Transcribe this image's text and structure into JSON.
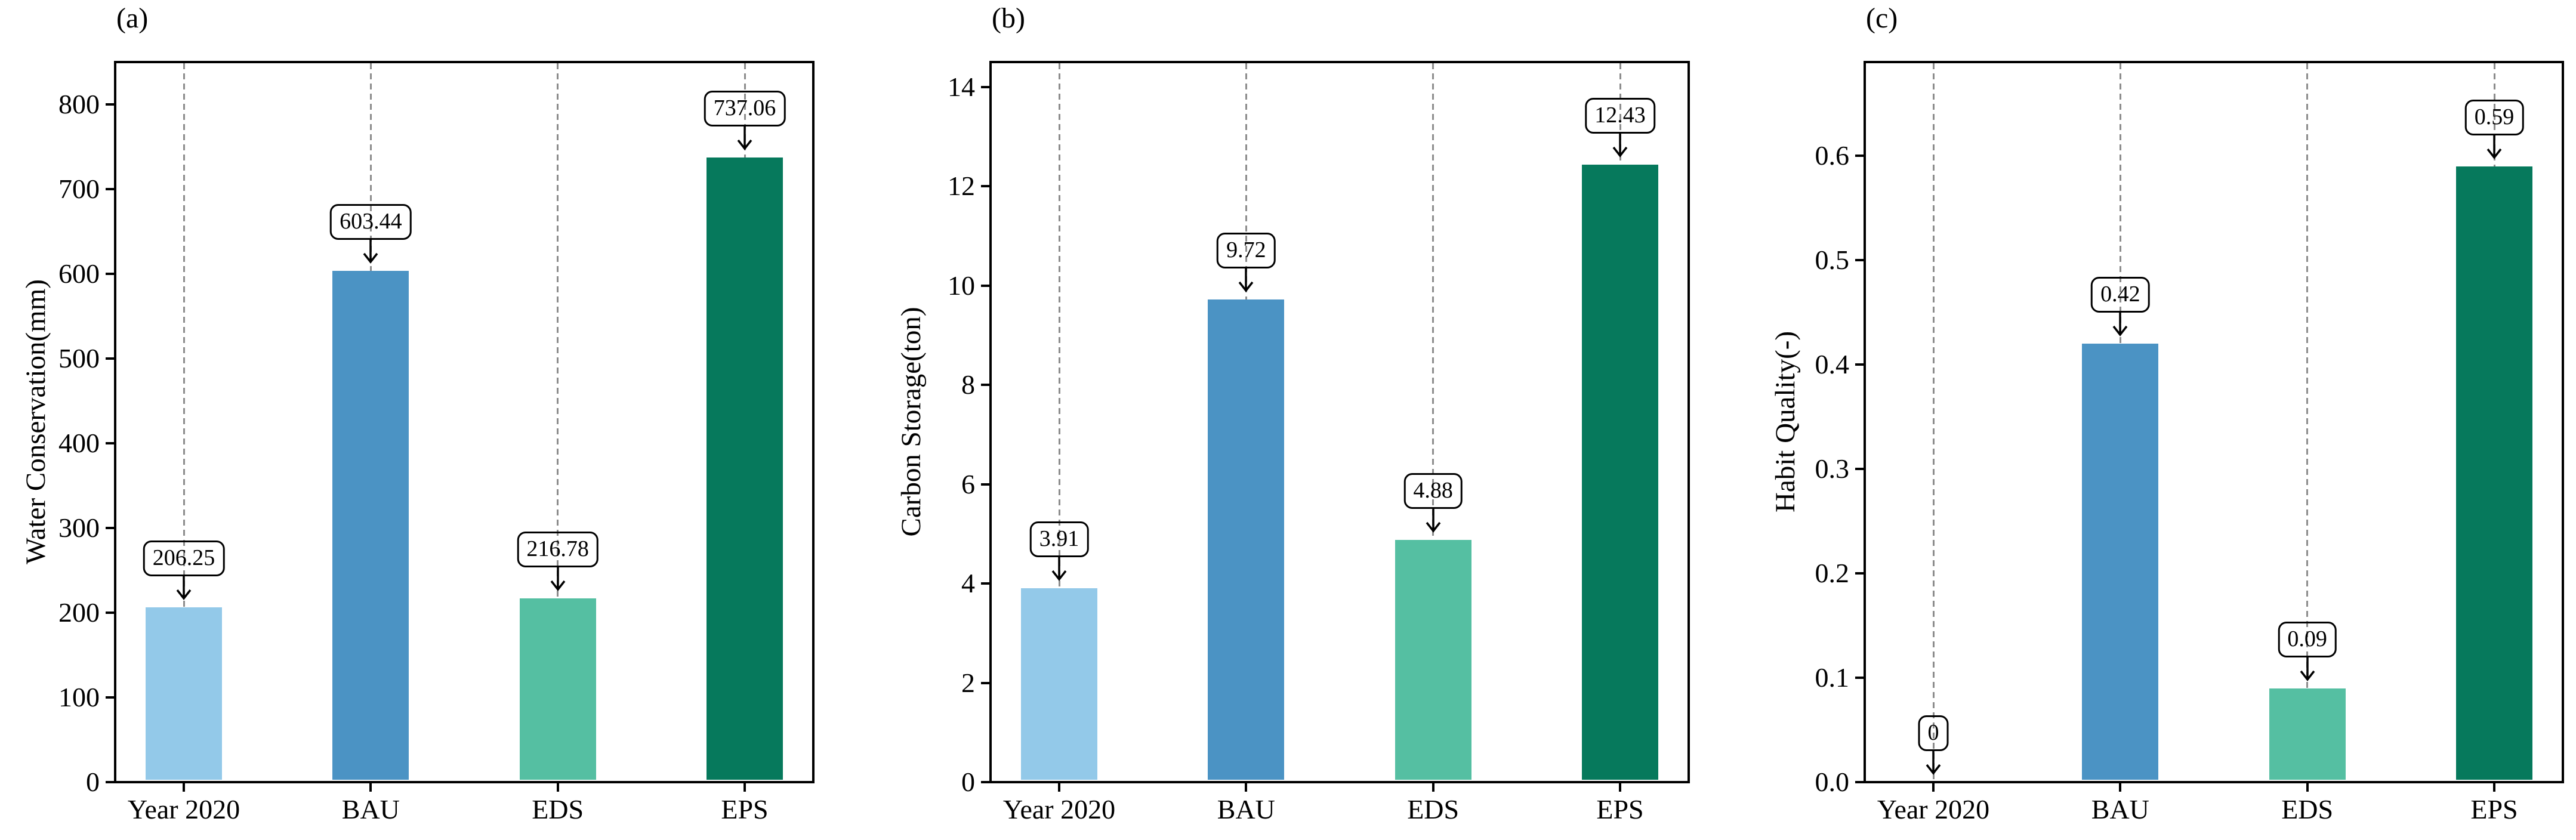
{
  "figure": {
    "background": "#ffffff",
    "gridline_color": "#8c8c8c",
    "text_color": "#000000",
    "arrow_color": "#000000"
  },
  "chart_data": [
    {
      "type": "bar",
      "panel_label": "(a)",
      "ylabel": "Water Conservation(mm)",
      "xlabel": "",
      "categories": [
        "Year 2020",
        "BAU",
        "EDS",
        "EPS"
      ],
      "values": [
        206.25,
        603.44,
        216.78,
        737.06
      ],
      "bar_labels": [
        "206.25",
        "603.44",
        "216.78",
        "737.06"
      ],
      "yticks": [
        "0",
        "100",
        "200",
        "300",
        "400",
        "500",
        "600",
        "700",
        "800"
      ],
      "ylim": [
        0,
        850
      ],
      "grid": "vertical-dashed",
      "bar_colors": [
        "#93c9e9",
        "#4b93c4",
        "#55bfa2",
        "#06795c"
      ]
    },
    {
      "type": "bar",
      "panel_label": "(b)",
      "ylabel": "Carbon Storage(ton)",
      "xlabel": "",
      "categories": [
        "Year 2020",
        "BAU",
        "EDS",
        "EPS"
      ],
      "values": [
        3.91,
        9.72,
        4.88,
        12.43
      ],
      "bar_labels": [
        "3.91",
        "9.72",
        "4.88",
        "12.43"
      ],
      "yticks": [
        "0",
        "2",
        "4",
        "6",
        "8",
        "10",
        "12",
        "14"
      ],
      "ylim": [
        0,
        14.5
      ],
      "grid": "vertical-dashed",
      "bar_colors": [
        "#93c9e9",
        "#4b93c4",
        "#55bfa2",
        "#06795c"
      ]
    },
    {
      "type": "bar",
      "panel_label": "(c)",
      "ylabel": "Habit Quality(-)",
      "xlabel": "",
      "categories": [
        "Year 2020",
        "BAU",
        "EDS",
        "EPS"
      ],
      "values": [
        0,
        0.42,
        0.09,
        0.59
      ],
      "bar_labels": [
        "0",
        "0.42",
        "0.09",
        "0.59"
      ],
      "yticks": [
        "0.0",
        "0.1",
        "0.2",
        "0.3",
        "0.4",
        "0.5",
        "0.6"
      ],
      "ylim": [
        0,
        0.69
      ],
      "grid": "vertical-dashed",
      "bar_colors": [
        "#93c9e9",
        "#4b93c4",
        "#55bfa2",
        "#06795c"
      ]
    }
  ]
}
